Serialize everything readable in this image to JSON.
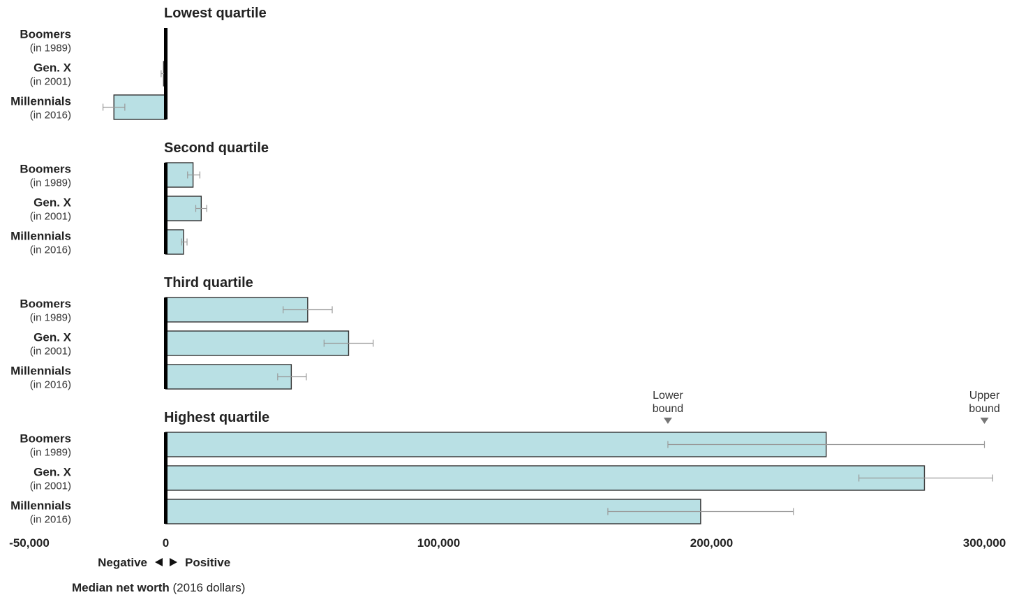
{
  "chart_data": {
    "type": "bar",
    "orientation": "horizontal",
    "xlim": [
      -50000,
      300000
    ],
    "x_ticks": [
      {
        "value": -50000,
        "label": "-50,000"
      },
      {
        "value": 0,
        "label": "0"
      },
      {
        "value": 100000,
        "label": "100,000"
      },
      {
        "value": 200000,
        "label": "200,000"
      },
      {
        "value": 300000,
        "label": "300,000"
      }
    ],
    "direction_labels": {
      "negative": "Negative",
      "positive": "Positive"
    },
    "xlabel": {
      "bold": "Median net worth",
      "normal": "(2016 dollars)"
    },
    "bar_color": "#b9e0e4",
    "panels": [
      {
        "title": "Lowest quartile",
        "bars": [
          {
            "label": "Boomers",
            "sublabel": "(in 1989)",
            "value": 0,
            "ci": [
              0,
              0
            ]
          },
          {
            "label": "Gen. X",
            "sublabel": "(in 2001)",
            "value": -800,
            "ci": [
              -1700,
              -400
            ]
          },
          {
            "label": "Millennials",
            "sublabel": "(in 2016)",
            "value": -19000,
            "ci": [
              -23000,
              -15000
            ]
          }
        ]
      },
      {
        "title": "Second quartile",
        "bars": [
          {
            "label": "Boomers",
            "sublabel": "(in 1989)",
            "value": 10000,
            "ci": [
              8000,
              12500
            ]
          },
          {
            "label": "Gen. X",
            "sublabel": "(in 2001)",
            "value": 13000,
            "ci": [
              11000,
              15000
            ]
          },
          {
            "label": "Millennials",
            "sublabel": "(in 2016)",
            "value": 6500,
            "ci": [
              5800,
              7800
            ]
          }
        ]
      },
      {
        "title": "Third quartile",
        "bars": [
          {
            "label": "Boomers",
            "sublabel": "(in 1989)",
            "value": 52000,
            "ci": [
              43000,
              61000
            ]
          },
          {
            "label": "Gen. X",
            "sublabel": "(in 2001)",
            "value": 67000,
            "ci": [
              58000,
              76000
            ]
          },
          {
            "label": "Millennials",
            "sublabel": "(in 2016)",
            "value": 46000,
            "ci": [
              41000,
              51500
            ]
          }
        ]
      },
      {
        "title": "Highest quartile",
        "bars": [
          {
            "label": "Boomers",
            "sublabel": "(in 1989)",
            "value": 242000,
            "ci": [
              184000,
              300000
            ]
          },
          {
            "label": "Gen. X",
            "sublabel": "(in 2001)",
            "value": 278000,
            "ci": [
              254000,
              303000
            ]
          },
          {
            "label": "Millennials",
            "sublabel": "(in 2016)",
            "value": 196000,
            "ci": [
              162000,
              230000
            ]
          }
        ]
      }
    ],
    "annotations": [
      {
        "text_line1": "Lower",
        "text_line2": "bound",
        "value": 184000
      },
      {
        "text_line1": "Upper",
        "text_line2": "bound",
        "value": 300000
      }
    ]
  }
}
